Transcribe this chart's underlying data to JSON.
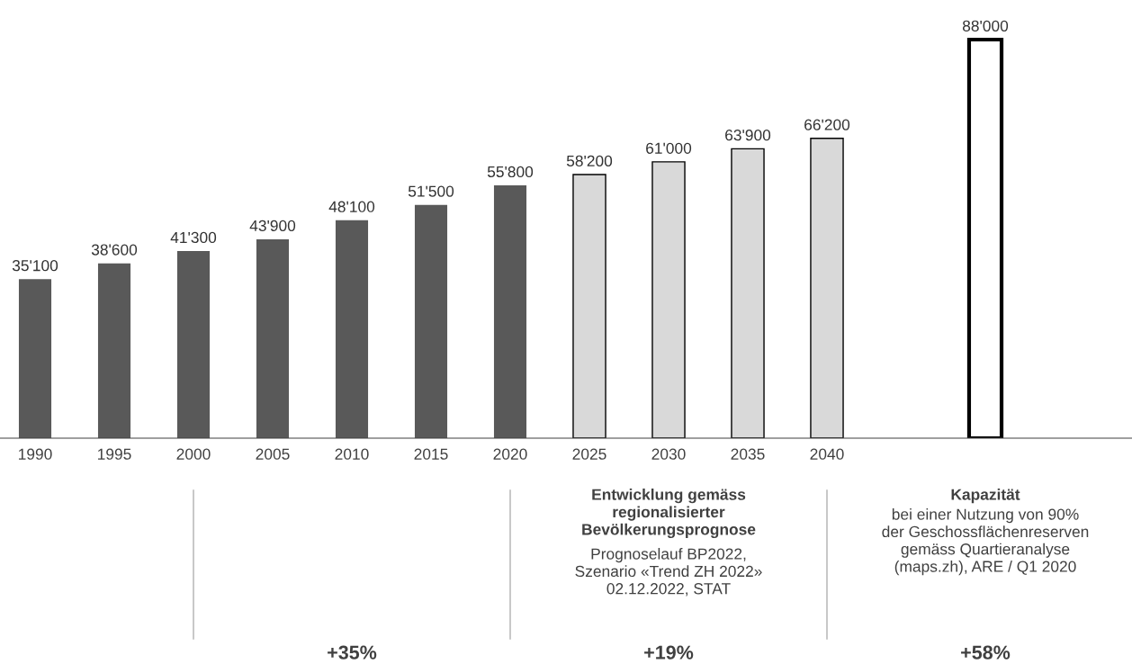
{
  "chart_data": {
    "type": "bar",
    "categories": [
      "1990",
      "1995",
      "2000",
      "2005",
      "2010",
      "2015",
      "2020",
      "2025",
      "2030",
      "2035",
      "2040",
      null,
      null
    ],
    "values": [
      35100,
      38600,
      41300,
      43900,
      48100,
      51500,
      55800,
      58200,
      61000,
      63900,
      66200,
      null,
      88000
    ],
    "value_labels": [
      "35'100",
      "38'600",
      "41'300",
      "43'900",
      "48'100",
      "51'500",
      "55'800",
      "58'200",
      "61'000",
      "63'900",
      "66'200",
      null,
      "88'000"
    ],
    "colors": [
      "#595959",
      "#595959",
      "#595959",
      "#595959",
      "#595959",
      "#595959",
      "#595959",
      "#d9d9d9",
      "#d9d9d9",
      "#d9d9d9",
      "#d9d9d9",
      "#ffffff",
      "#ffffff"
    ],
    "tick_labels": "x",
    "grid": false,
    "legend": false,
    "annotations": [
      "Entwicklung gemäss\nregionalisierter\nBevölkerungsprognose",
      "Prognoselauf BP2022,\nSzenario «Trend ZH 2022»\n02.12.2022, STAT",
      "Kapazität",
      "bei einer Nutzung von 90%\nder Geschossflächenreserven\ngemäss Quartieranalyse\n(maps.zh), ARE / Q1 2020",
      "+35%",
      "+19%",
      "+58%"
    ]
  }
}
